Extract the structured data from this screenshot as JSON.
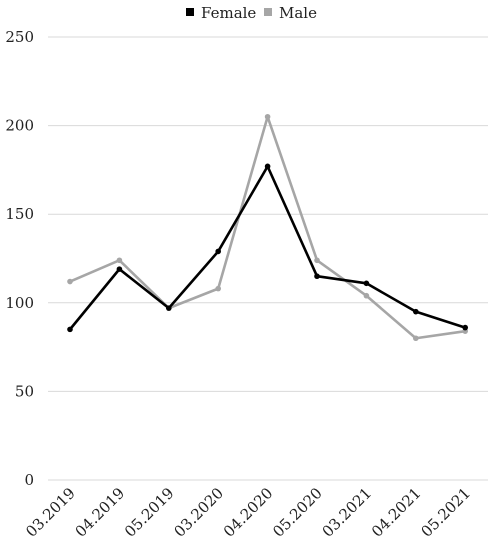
{
  "chart_data": {
    "type": "line",
    "title": "",
    "xlabel": "",
    "ylabel": "",
    "categories": [
      "03.2019",
      "04.2019",
      "05.2019",
      "03.2020",
      "04.2020",
      "05.2020",
      "03.2021",
      "04.2021",
      "05.2021"
    ],
    "ylim": [
      0,
      250
    ],
    "yticks": [
      0,
      50,
      100,
      150,
      200,
      250
    ],
    "grid": true,
    "legend_position": "top-center",
    "series": [
      {
        "name": "Female",
        "color": "#000000",
        "values": [
          85,
          119,
          97,
          129,
          177,
          115,
          111,
          95,
          86
        ]
      },
      {
        "name": "Male",
        "color": "#a6a6a6",
        "values": [
          112,
          124,
          97,
          108,
          205,
          124,
          104,
          80,
          84
        ]
      }
    ]
  }
}
